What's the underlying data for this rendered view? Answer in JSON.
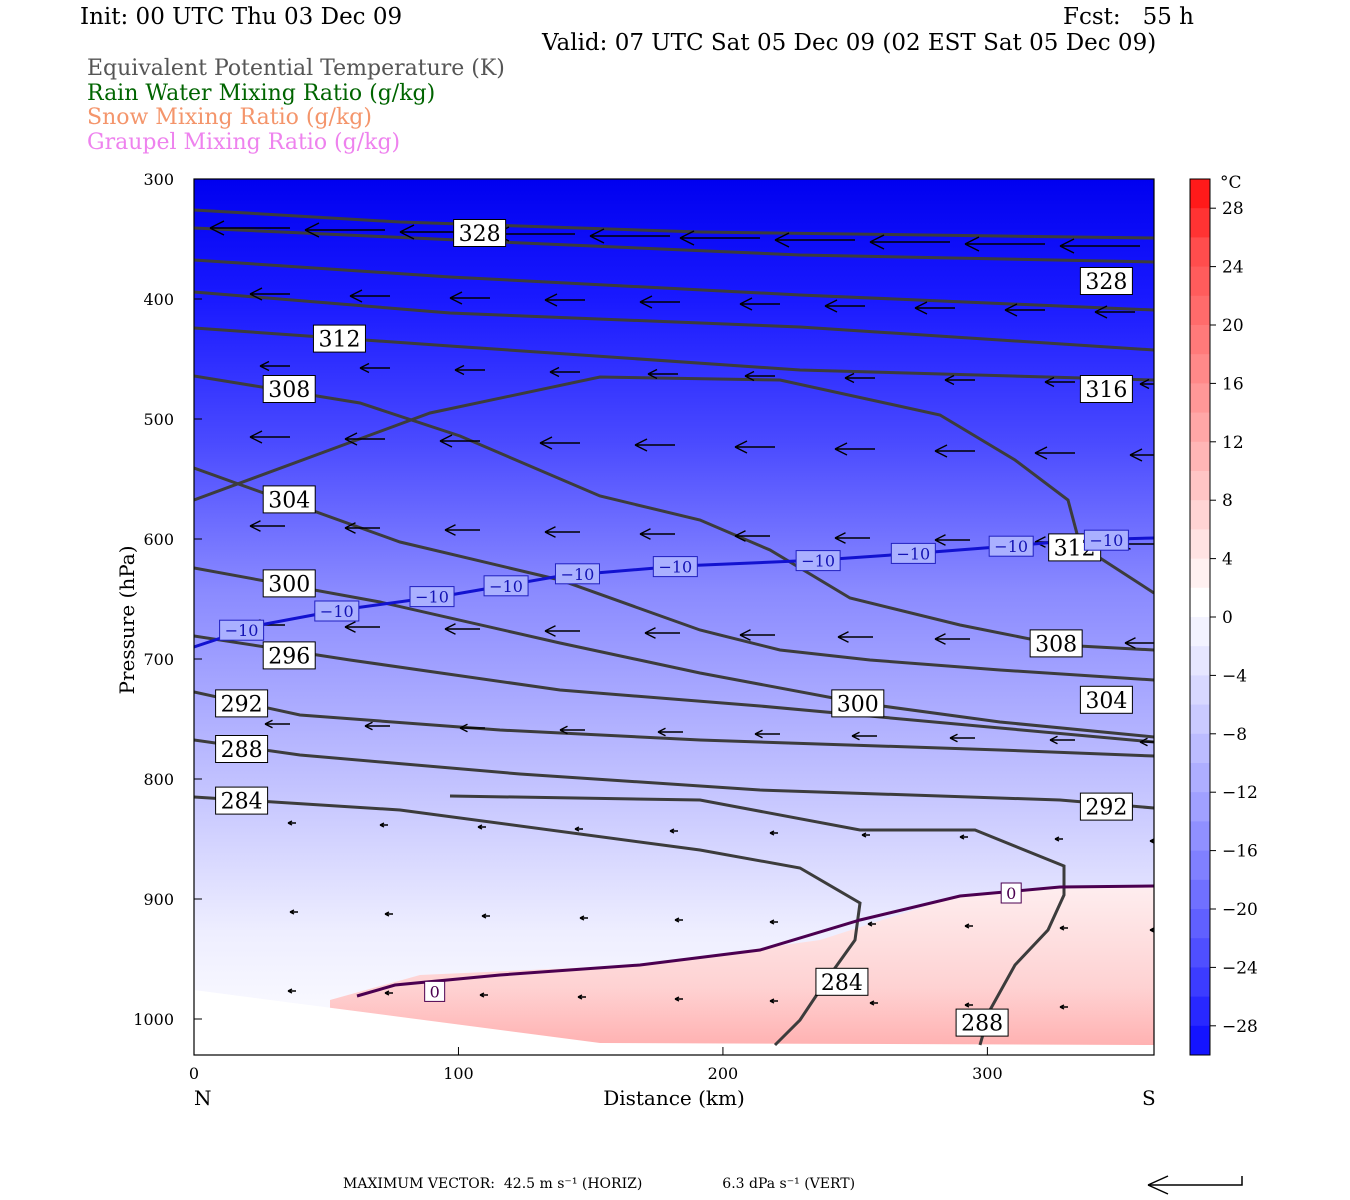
{
  "header": {
    "init": "Init: 00 UTC Thu 03 Dec 09",
    "fcst": "Fcst:   55 h",
    "valid": "Valid: 07 UTC Sat 05 Dec 09 (02 EST Sat 05 Dec 09)"
  },
  "fields": [
    {
      "label": "Equivalent Potential Temperature (K)",
      "color": "#555555"
    },
    {
      "label": "Rain Water Mixing Ratio (g/kg)",
      "color": "#006400"
    },
    {
      "label": "Snow Mixing Ratio (g/kg)",
      "color": "#f4956b"
    },
    {
      "label": "Graupel Mixing Ratio (g/kg)",
      "color": "#ee82ee"
    }
  ],
  "footer": {
    "max_vector_label": "MAXIMUM VECTOR:",
    "horiz": "42.5 m s⁻¹ (HORIZ)",
    "vert": "6.3 dPa s⁻¹ (VERT)"
  },
  "chart_data": {
    "type": "contour",
    "xlabel": "Distance (km)",
    "ylabel": "Pressure (hPa)",
    "x_ticks": [
      0,
      100,
      200,
      300
    ],
    "x_range": [
      0,
      363
    ],
    "y_ticks": [
      300,
      400,
      500,
      600,
      700,
      800,
      900,
      1000
    ],
    "y_range": [
      300,
      1030
    ],
    "left_end_label": "N",
    "right_end_label": "S",
    "colorbar": {
      "unit": "°C",
      "ticks": [
        "28",
        "24",
        "20",
        "16",
        "12",
        "8",
        "4",
        "0",
        "−4",
        "−8",
        "−12",
        "−16",
        "−20",
        "−24",
        "−28"
      ],
      "levels": [
        30,
        28,
        26,
        24,
        22,
        20,
        18,
        16,
        14,
        12,
        10,
        8,
        6,
        4,
        2,
        0,
        -2,
        -4,
        -6,
        -8,
        -10,
        -12,
        -14,
        -16,
        -18,
        -20,
        -22,
        -24,
        -26,
        -28,
        -30
      ],
      "colors": [
        "#ff1a1a",
        "#ff3333",
        "#ff4d4d",
        "#ff5c5c",
        "#ff6b6b",
        "#ff7a7a",
        "#ff8989",
        "#ff9898",
        "#ffa7a7",
        "#ffb6b6",
        "#ffc5c5",
        "#ffd4d4",
        "#ffe3e3",
        "#fff1f1",
        "#ffffff",
        "#f3f3ff",
        "#e6e6ff",
        "#d8d8ff",
        "#cacaff",
        "#bcbcff",
        "#aeaeff",
        "#a0a0ff",
        "#9090ff",
        "#8080ff",
        "#7070ff",
        "#6060ff",
        "#4f4fff",
        "#3c3cff",
        "#2828ff",
        "#1414ff"
      ]
    },
    "theta_e_labels": [
      {
        "value": "328",
        "x": 108,
        "p": 345
      },
      {
        "value": "328",
        "x": 345,
        "p": 385
      },
      {
        "value": "312",
        "x": 55,
        "p": 433
      },
      {
        "value": "316",
        "x": 345,
        "p": 475
      },
      {
        "value": "308",
        "x": 36,
        "p": 475
      },
      {
        "value": "304",
        "x": 36,
        "p": 567
      },
      {
        "value": "312",
        "x": 333,
        "p": 607
      },
      {
        "value": "300",
        "x": 36,
        "p": 637
      },
      {
        "value": "308",
        "x": 326,
        "p": 687
      },
      {
        "value": "296",
        "x": 36,
        "p": 697
      },
      {
        "value": "304",
        "x": 345,
        "p": 734
      },
      {
        "value": "300",
        "x": 251,
        "p": 737
      },
      {
        "value": "292",
        "x": 18,
        "p": 737
      },
      {
        "value": "288",
        "x": 18,
        "p": 775
      },
      {
        "value": "292",
        "x": 345,
        "p": 823
      },
      {
        "value": "284",
        "x": 18,
        "p": 818
      },
      {
        "value": "284",
        "x": 245,
        "p": 969
      },
      {
        "value": "288",
        "x": 298,
        "p": 1003
      }
    ],
    "isotherm_labels": [
      {
        "value": "−10",
        "x": 18,
        "p": 676
      },
      {
        "value": "−10",
        "x": 54,
        "p": 660
      },
      {
        "value": "−10",
        "x": 90,
        "p": 648
      },
      {
        "value": "−10",
        "x": 118,
        "p": 639
      },
      {
        "value": "−10",
        "x": 145,
        "p": 629
      },
      {
        "value": "−10",
        "x": 182,
        "p": 623
      },
      {
        "value": "−10",
        "x": 236,
        "p": 618
      },
      {
        "value": "−10",
        "x": 272,
        "p": 612
      },
      {
        "value": "−10",
        "x": 309,
        "p": 606
      },
      {
        "value": "−10",
        "x": 345,
        "p": 601
      },
      {
        "value": "0",
        "x": 91,
        "p": 977
      },
      {
        "value": "0",
        "x": 309,
        "p": 895
      }
    ]
  }
}
